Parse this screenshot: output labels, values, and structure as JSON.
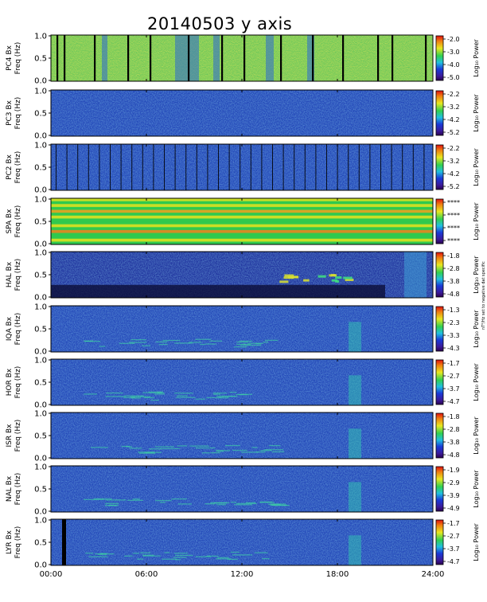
{
  "title": "20140503 y axis",
  "chart_data": {
    "type": "heatmap",
    "description_axis": "time (UT) vs frequency",
    "x_ticks": [
      "00:00",
      "06:00",
      "12:00",
      "18:00",
      "24:00"
    ],
    "x_range_hours": [
      0,
      24
    ],
    "y_ticks": [
      "0.0",
      "0.5",
      "1.0"
    ],
    "y_range_hz": [
      0,
      1.0
    ],
    "colormap": "rainbow (purple-blue-cyan-green-yellow-red)",
    "colorbar_label": "Log₁₀ Power",
    "panels": [
      {
        "station": "PC4",
        "ylabel_line1": "PC4 Bx",
        "ylabel_line2": "Freq (Hz)",
        "colorbar_ticks": [
          "-2.0",
          "-3.0",
          "-4.0",
          "-5.0"
        ],
        "cb_max": -2.0,
        "cb_min": -5.0
      },
      {
        "station": "PC3",
        "ylabel_line1": "PC3 Bx",
        "ylabel_line2": "Freq (Hz)",
        "colorbar_ticks": [
          "-2.2",
          "-3.2",
          "-4.2",
          "-5.2"
        ],
        "cb_max": -2.2,
        "cb_min": -5.2
      },
      {
        "station": "PC2",
        "ylabel_line1": "PC2 Bx",
        "ylabel_line2": "Freq (Hz)",
        "colorbar_ticks": [
          "-2.2",
          "-3.2",
          "-4.2",
          "-5.2"
        ],
        "cb_max": -2.2,
        "cb_min": -5.2
      },
      {
        "station": "SPA",
        "ylabel_line1": "SPA Bx",
        "ylabel_line2": "Freq (Hz)",
        "colorbar_ticks": [
          "****",
          "****",
          "****",
          "****"
        ],
        "cb_max": null,
        "cb_min": null
      },
      {
        "station": "HAL",
        "ylabel_line1": "HAL Bx",
        "ylabel_line2": "Freq (Hz)",
        "colorbar_ticks": [
          "-1.8",
          "-2.8",
          "-3.8",
          "-4.8"
        ],
        "cb_max": -1.8,
        "cb_min": -4.8,
        "note": "nT²/Hz set to negative dat specific"
      },
      {
        "station": "IQA",
        "ylabel_line1": "IQA Bx",
        "ylabel_line2": "Freq (Hz)",
        "colorbar_ticks": [
          "-1.3",
          "-2.3",
          "-3.3",
          "-4.3"
        ],
        "cb_max": -1.3,
        "cb_min": -4.3
      },
      {
        "station": "HOR",
        "ylabel_line1": "HOR Bx",
        "ylabel_line2": "Freq (Hz)",
        "colorbar_ticks": [
          "-1.7",
          "-2.7",
          "-3.7",
          "-4.7"
        ],
        "cb_max": -1.7,
        "cb_min": -4.7
      },
      {
        "station": "ISR",
        "ylabel_line1": "ISR Bx",
        "ylabel_line2": "Freq (Hz)",
        "colorbar_ticks": [
          "-1.8",
          "-2.8",
          "-3.8",
          "-4.8"
        ],
        "cb_max": -1.8,
        "cb_min": -4.8
      },
      {
        "station": "NAL",
        "ylabel_line1": "NAL Bx",
        "ylabel_line2": "Freq (Hz)",
        "colorbar_ticks": [
          "-1.9",
          "-2.9",
          "-3.9",
          "-4.9"
        ],
        "cb_max": -1.9,
        "cb_min": -4.9
      },
      {
        "station": "LYR",
        "ylabel_line1": "LYR Bx",
        "ylabel_line2": "Freq (Hz)",
        "colorbar_ticks": [
          "-1.7",
          "-2.7",
          "-3.7",
          "-4.7"
        ],
        "cb_max": -1.7,
        "cb_min": -4.7
      }
    ]
  },
  "colors": {
    "purple": "#3b0a6b",
    "dark_blue": "#1a2a9a",
    "blue": "#2a55c8",
    "cyan": "#22c4d8",
    "green": "#3ad04a",
    "yellow": "#f0e030",
    "red": "#e02818"
  }
}
